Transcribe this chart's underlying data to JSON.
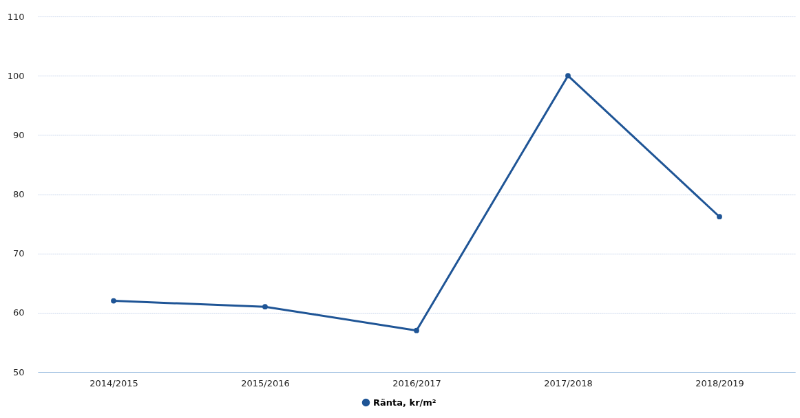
{
  "chart_data": {
    "type": "line",
    "categories": [
      "2014/2015",
      "2015/2016",
      "2016/2017",
      "2017/2018",
      "2018/2019"
    ],
    "series": [
      {
        "name": "Ränta, kr/m²",
        "color": "#1f5596",
        "values": [
          62,
          61,
          57,
          100,
          76.2
        ]
      }
    ],
    "ylim": [
      50,
      110
    ],
    "yticks": [
      50,
      60,
      70,
      80,
      90,
      100,
      110
    ],
    "grid": "y",
    "legend": "bottom",
    "marker": "circle",
    "line_style": "solid"
  }
}
